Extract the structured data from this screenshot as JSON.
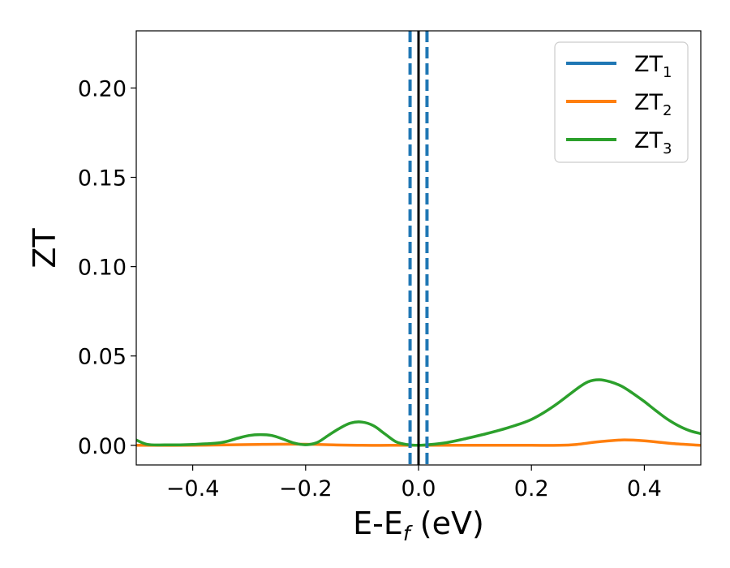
{
  "chart_data": {
    "type": "line",
    "xlabel": "E-E",
    "xlabel_sub": "f",
    "xlabel_unit": " (eV)",
    "ylabel": "ZT",
    "xlim": [
      -0.5,
      0.5
    ],
    "ylim": [
      -0.011,
      0.232
    ],
    "x_ticks": [
      -0.4,
      -0.2,
      0.0,
      0.2,
      0.4
    ],
    "x_tick_labels": [
      "−0.4",
      "−0.2",
      "0.0",
      "0.2",
      "0.4"
    ],
    "y_ticks": [
      0.0,
      0.05,
      0.1,
      0.15,
      0.2
    ],
    "y_tick_labels": [
      "0.00",
      "0.05",
      "0.10",
      "0.15",
      "0.20"
    ],
    "grid": false,
    "legend_position": "top-right",
    "series": [
      {
        "name": "ZT",
        "name_sub": "1",
        "color": "#1f77b4",
        "x": [],
        "y": []
      },
      {
        "name": "ZT",
        "name_sub": "2",
        "color": "#ff7f0e",
        "x": [
          -0.5,
          -0.4,
          -0.3,
          -0.25,
          -0.2,
          -0.15,
          -0.1,
          -0.05,
          0.0,
          0.05,
          0.1,
          0.15,
          0.2,
          0.25,
          0.28,
          0.32,
          0.36,
          0.4,
          0.45,
          0.5
        ],
        "y": [
          0.0,
          0.0,
          0.0004,
          0.0006,
          0.0006,
          0.0002,
          0.0,
          0.0,
          0.0,
          0.0,
          0.0,
          0.0,
          0.0,
          0.0,
          0.0005,
          0.002,
          0.003,
          0.0025,
          0.001,
          0.0
        ]
      },
      {
        "name": "ZT",
        "name_sub": "3",
        "color": "#2ca02c",
        "x": [
          -0.5,
          -0.48,
          -0.45,
          -0.4,
          -0.35,
          -0.32,
          -0.3,
          -0.28,
          -0.26,
          -0.24,
          -0.22,
          -0.2,
          -0.18,
          -0.16,
          -0.14,
          -0.12,
          -0.1,
          -0.08,
          -0.06,
          -0.04,
          -0.02,
          0.0,
          0.02,
          0.05,
          0.08,
          0.12,
          0.16,
          0.2,
          0.24,
          0.28,
          0.3,
          0.32,
          0.34,
          0.36,
          0.38,
          0.4,
          0.42,
          0.44,
          0.46,
          0.48,
          0.5
        ],
        "y": [
          0.003,
          0.0005,
          0.0002,
          0.0005,
          0.0015,
          0.004,
          0.0055,
          0.006,
          0.0055,
          0.0035,
          0.0012,
          0.0003,
          0.0015,
          0.0055,
          0.0095,
          0.0125,
          0.013,
          0.011,
          0.0065,
          0.002,
          0.0004,
          0.0,
          0.0004,
          0.0015,
          0.0035,
          0.0065,
          0.01,
          0.0145,
          0.022,
          0.0315,
          0.0355,
          0.0367,
          0.0355,
          0.033,
          0.029,
          0.0245,
          0.0195,
          0.0148,
          0.011,
          0.0082,
          0.0065
        ]
      }
    ],
    "vertical_lines": [
      {
        "x": -0.015,
        "color": "#1f77b4",
        "style": "dashed"
      },
      {
        "x": 0.015,
        "color": "#1f77b4",
        "style": "dashed"
      },
      {
        "x": 0.0,
        "color": "#000000",
        "style": "solid"
      }
    ]
  }
}
